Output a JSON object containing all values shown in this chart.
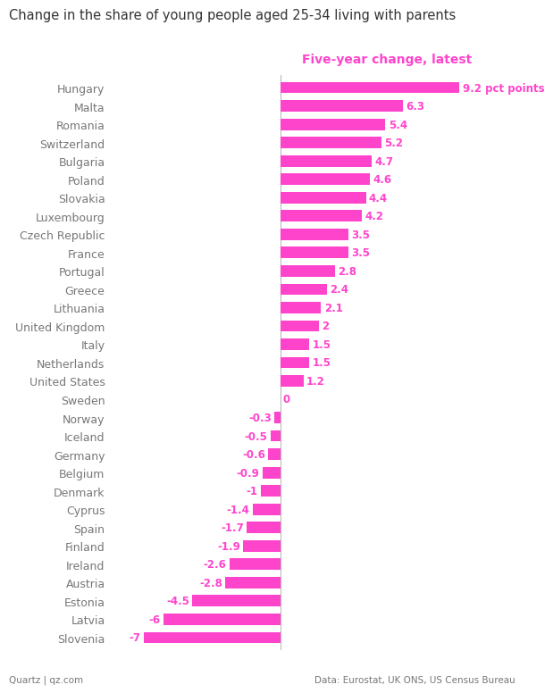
{
  "title": "Change in the share of young people aged 25-34 living with parents",
  "subtitle": "Five-year change, latest",
  "subtitle_color": "#FF44CC",
  "bar_color": "#FF44CC",
  "footer_left": "Quartz | qz.com",
  "footer_right": "Data: Eurostat, UK ONS, US Census Bureau",
  "categories": [
    "Hungary",
    "Malta",
    "Romania",
    "Switzerland",
    "Bulgaria",
    "Poland",
    "Slovakia",
    "Luxembourg",
    "Czech Republic",
    "France",
    "Portugal",
    "Greece",
    "Lithuania",
    "United Kingdom",
    "Italy",
    "Netherlands",
    "United States",
    "Sweden",
    "Norway",
    "Iceland",
    "Germany",
    "Belgium",
    "Denmark",
    "Cyprus",
    "Spain",
    "Finland",
    "Ireland",
    "Austria",
    "Estonia",
    "Latvia",
    "Slovenia"
  ],
  "values": [
    9.2,
    6.3,
    5.4,
    5.2,
    4.7,
    4.6,
    4.4,
    4.2,
    3.5,
    3.5,
    2.8,
    2.4,
    2.1,
    2.0,
    1.5,
    1.5,
    1.2,
    0.0,
    -0.3,
    -0.5,
    -0.6,
    -0.9,
    -1.0,
    -1.4,
    -1.7,
    -1.9,
    -2.6,
    -2.8,
    -4.5,
    -6.0,
    -7.0
  ],
  "value_labels": [
    "9.2 pct points",
    "6.3",
    "5.4",
    "5.2",
    "4.7",
    "4.6",
    "4.4",
    "4.2",
    "3.5",
    "3.5",
    "2.8",
    "2.4",
    "2.1",
    "2",
    "1.5",
    "1.5",
    "1.2",
    "0",
    "-0.3",
    "-0.5",
    "-0.6",
    "-0.9",
    "-1",
    "-1.4",
    "-1.7",
    "-1.9",
    "-2.6",
    "-2.8",
    "-4.5",
    "-6",
    "-7"
  ],
  "xlim": [
    -8.5,
    11.5
  ],
  "bg_color": "#FFFFFF",
  "text_color": "#777777",
  "title_color": "#333333",
  "title_fontsize": 10.5,
  "subtitle_fontsize": 10,
  "label_fontsize": 8.5,
  "ytick_fontsize": 9
}
